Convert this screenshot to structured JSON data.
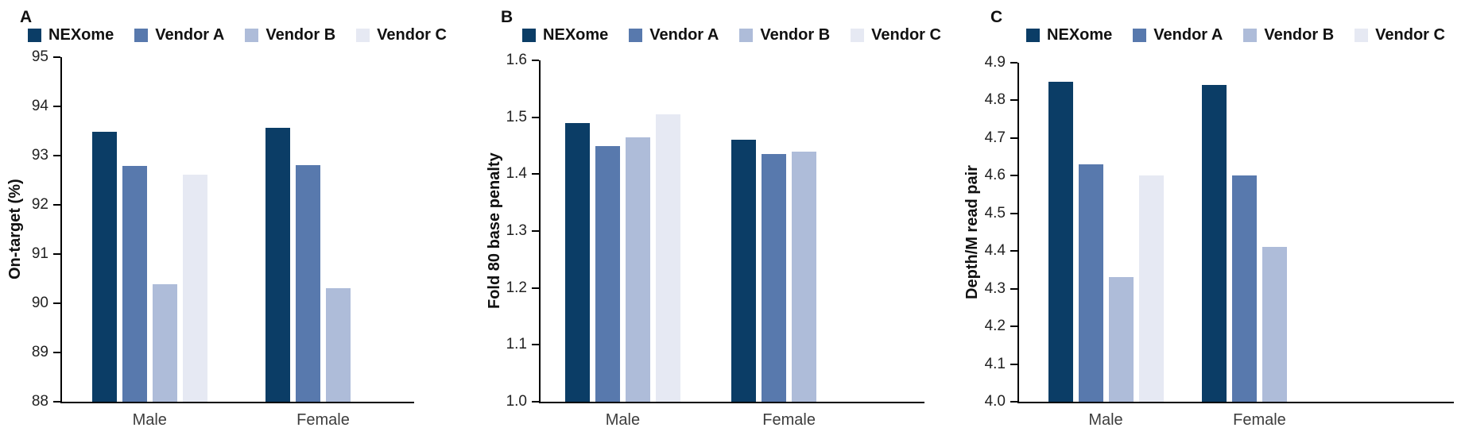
{
  "figure": {
    "background": "#ffffff",
    "categories": [
      "Male",
      "Female"
    ],
    "legend_labels": [
      "NEXome",
      "Vendor A",
      "Vendor B",
      "Vendor C"
    ],
    "series_colors": {
      "NEXome": "#0b3d66",
      "Vendor A": "#5879ad",
      "Vendor B": "#aebcd9",
      "Vendor C": "#e6e9f3"
    }
  },
  "chart_data": [
    {
      "type": "bar",
      "panel_label": "A",
      "ylabel": "On-target (%)",
      "ylim": [
        88,
        95
      ],
      "yticks": [
        "88",
        "89",
        "90",
        "91",
        "92",
        "93",
        "94",
        "95"
      ],
      "categories": [
        "Male",
        "Female"
      ],
      "legend_position": "top",
      "grid": false,
      "series": [
        {
          "name": "NEXome",
          "color": "#0b3d66",
          "values": [
            93.49,
            93.56
          ]
        },
        {
          "name": "Vendor A",
          "color": "#5879ad",
          "values": [
            92.79,
            92.81
          ]
        },
        {
          "name": "Vendor B",
          "color": "#aebcd9",
          "values": [
            90.38,
            90.31
          ]
        },
        {
          "name": "Vendor C",
          "color": "#e6e9f3",
          "values": [
            92.61,
            null
          ]
        }
      ]
    },
    {
      "type": "bar",
      "panel_label": "B",
      "ylabel": "Fold 80 base penalty",
      "ylim": [
        1.0,
        1.6
      ],
      "yticks": [
        "1.0",
        "1.1",
        "1.2",
        "1.3",
        "1.4",
        "1.5",
        "1.6"
      ],
      "categories": [
        "Male",
        "Female"
      ],
      "legend_position": "top",
      "grid": false,
      "series": [
        {
          "name": "NEXome",
          "color": "#0b3d66",
          "values": [
            1.49,
            1.46
          ]
        },
        {
          "name": "Vendor A",
          "color": "#5879ad",
          "values": [
            1.45,
            1.435
          ]
        },
        {
          "name": "Vendor B",
          "color": "#aebcd9",
          "values": [
            1.465,
            1.44
          ]
        },
        {
          "name": "Vendor C",
          "color": "#e6e9f3",
          "values": [
            1.505,
            null
          ]
        }
      ]
    },
    {
      "type": "bar",
      "panel_label": "C",
      "ylabel": "Depth/M read pair",
      "ylim": [
        4.0,
        4.9
      ],
      "yticks": [
        "4.0",
        "4.1",
        "4.2",
        "4.3",
        "4.4",
        "4.5",
        "4.6",
        "4.7",
        "4.8",
        "4.9"
      ],
      "categories": [
        "Male",
        "Female"
      ],
      "legend_position": "top",
      "grid": false,
      "series": [
        {
          "name": "NEXome",
          "color": "#0b3d66",
          "values": [
            4.85,
            4.84
          ]
        },
        {
          "name": "Vendor A",
          "color": "#5879ad",
          "values": [
            4.63,
            4.6
          ]
        },
        {
          "name": "Vendor B",
          "color": "#aebcd9",
          "values": [
            4.33,
            4.41
          ]
        },
        {
          "name": "Vendor C",
          "color": "#e6e9f3",
          "values": [
            4.6,
            null
          ]
        }
      ]
    }
  ]
}
